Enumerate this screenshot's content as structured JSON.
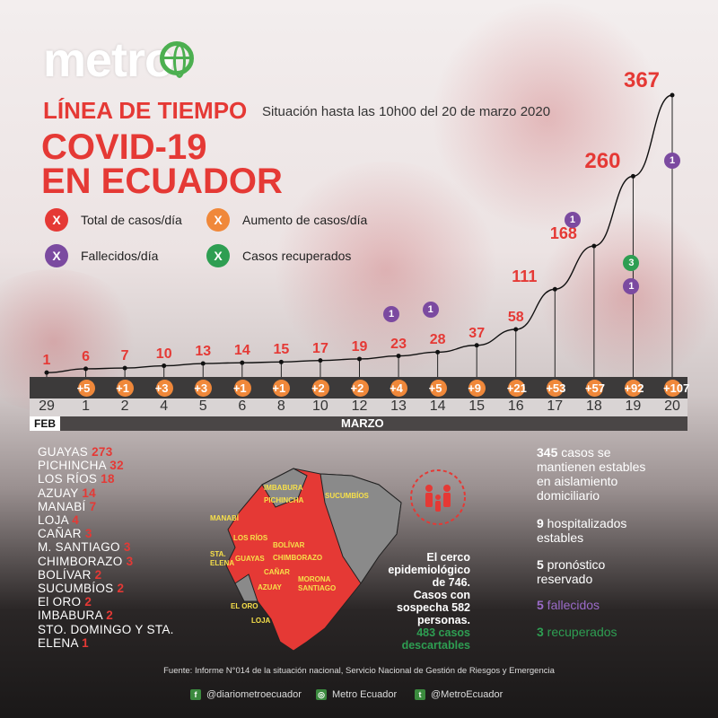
{
  "brand": {
    "logo": "metro"
  },
  "header": {
    "title_small": "LÍNEA DE TIEMPO",
    "subtitle": "Situación hasta las 10h00 del 20 de marzo 2020",
    "title_big_1": "COVID-19",
    "title_big_2": "EN ECUADOR"
  },
  "legend": [
    {
      "symbol": "X",
      "label": "Total de casos/día",
      "color": "#e53935"
    },
    {
      "symbol": "X",
      "label": "Aumento de casos/día",
      "color": "#f0883a"
    },
    {
      "symbol": "X",
      "label": "Fallecidos/día",
      "color": "#7b4aa0"
    },
    {
      "symbol": "X",
      "label": "Casos recuperados",
      "color": "#2e9e52"
    }
  ],
  "chart_data": {
    "type": "line",
    "x": [
      "29",
      "1",
      "2",
      "4",
      "5",
      "6",
      "8",
      "10",
      "12",
      "13",
      "14",
      "15",
      "16",
      "17",
      "18",
      "19",
      "20"
    ],
    "month_labels": {
      "feb": "FEB",
      "mar": "MARZO"
    },
    "series": [
      {
        "name": "Total de casos/día",
        "values": [
          1,
          6,
          7,
          10,
          13,
          14,
          15,
          17,
          19,
          23,
          28,
          37,
          58,
          111,
          168,
          260,
          367
        ]
      },
      {
        "name": "Aumento de casos/día",
        "values": [
          null,
          "+5",
          "+1",
          "+3",
          "+3",
          "+1",
          "+1",
          "+2",
          "+2",
          "+4",
          "+5",
          "+9",
          "+21",
          "+53",
          "+57",
          "+92",
          "+107"
        ]
      }
    ],
    "deaths": [
      {
        "x": "13",
        "value": "1"
      },
      {
        "x": "14",
        "value": "1"
      },
      {
        "x": "18",
        "value": "1"
      },
      {
        "x": "19",
        "value": "1"
      },
      {
        "x": "20",
        "value": "1"
      }
    ],
    "recovered": [
      {
        "x": "19",
        "value": "3"
      }
    ],
    "colors": {
      "total": "#e53935",
      "increase": "#f0883a",
      "deaths": "#7b4aa0",
      "recovered": "#2e9e52"
    }
  },
  "provinces": [
    {
      "name": "GUAYAS",
      "value": "273"
    },
    {
      "name": "PICHINCHA",
      "value": "32"
    },
    {
      "name": "LOS RÍOS",
      "value": "18"
    },
    {
      "name": "AZUAY",
      "value": "14"
    },
    {
      "name": "MANABÍ",
      "value": "7"
    },
    {
      "name": "LOJA",
      "value": "4"
    },
    {
      "name": "CAÑAR",
      "value": "3"
    },
    {
      "name": "M. SANTIAGO",
      "value": "3"
    },
    {
      "name": "CHIMBORAZO",
      "value": "3"
    },
    {
      "name": "BOLÍVAR",
      "value": "2"
    },
    {
      "name": "SUCUMBÍOS",
      "value": "2"
    },
    {
      "name": "El ORO",
      "value": "2"
    },
    {
      "name": "IMBABURA",
      "value": "2"
    },
    {
      "name": "STO. DOMINGO Y STA.",
      "value": ""
    },
    {
      "name": "ELENA",
      "value": "1"
    }
  ],
  "map_labels": [
    "IMBABURA",
    "PICHINCHA",
    "SUCUMBÍOS",
    "MANABÍ",
    "LOS RÍOS",
    "STA.",
    "ELENA",
    "GUAYAS",
    "BOLÍVAR",
    "CHIMBORAZO",
    "CAÑAR",
    "AZUAY",
    "MORONA",
    "SANTIAGO",
    "EL ORO",
    "LOJA"
  ],
  "cerco": {
    "line1": "El cerco",
    "line2": "epidemiológico",
    "line3": "de 746.",
    "line4": "Casos con",
    "line5": "sospecha 582",
    "line6": "personas.",
    "green1": "483 casos",
    "green2": "descartables"
  },
  "stats": [
    {
      "num": "345",
      "l1": " casos se",
      "l2": "mantienen estables",
      "l3": "en aislamiento",
      "l4": "domiciliario"
    },
    {
      "num": "9",
      "l1": " hospitalizados",
      "l2": "estables"
    },
    {
      "num": "5",
      "l1": " pronóstico",
      "l2": "reservado"
    },
    {
      "num": "5",
      "l1": " fallecidos",
      "color": "#9b6bc9"
    },
    {
      "num": "3",
      "l1": " recuperados",
      "color": "#2e9e52"
    }
  ],
  "footer": {
    "source": "Fuente: Informe N°014 de la situación nacional, Servicio Nacional de Gestión de Riesgos y Emergencia"
  },
  "social": [
    {
      "icon": "facebook-icon",
      "label": "@diariometroecuador",
      "glyph": "f",
      "color": "#3b8a3e"
    },
    {
      "icon": "instagram-icon",
      "label": "Metro Ecuador",
      "glyph": "◎",
      "color": "#3b8a3e"
    },
    {
      "icon": "twitter-icon",
      "label": "@MetroEcuador",
      "glyph": "t",
      "color": "#3b8a3e"
    }
  ]
}
